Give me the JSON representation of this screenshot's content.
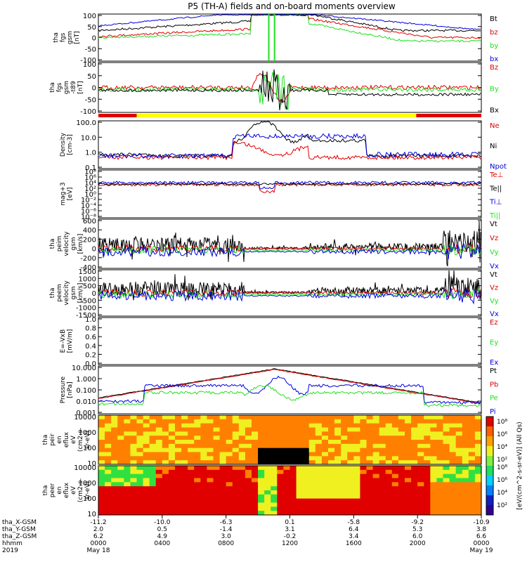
{
  "title": "P5 (TH-A) fields and on-board moments overview",
  "colors": {
    "black": "#000000",
    "red": "#e00000",
    "green": "#20e020",
    "blue": "#0000e0",
    "yellow": "#ffff00",
    "orange": "#ff9000"
  },
  "chart_data": [
    {
      "type": "line",
      "id": "fgs",
      "ylabel": [
        "tha",
        "fgs",
        "gsm",
        "[nT]"
      ],
      "ylim": [
        -100,
        100
      ],
      "yticks": [
        100,
        50,
        0,
        -50,
        -100
      ],
      "legend": [
        {
          "name": "Bt",
          "color": "black"
        },
        {
          "name": "bz",
          "color": "red"
        },
        {
          "name": "by",
          "color": "green"
        },
        {
          "name": "bx",
          "color": "blue"
        }
      ]
    },
    {
      "type": "line",
      "id": "fgs_dc",
      "ylabel": [
        "tha",
        "fgs",
        "gsm",
        "-t89",
        "[nT]"
      ],
      "ylim": [
        -120,
        120
      ],
      "yticks": [
        100,
        50,
        0,
        -50,
        -100
      ],
      "legend": [
        {
          "name": "Bz",
          "color": "red"
        },
        {
          "name": "By",
          "color": "green"
        },
        {
          "name": "Bx",
          "color": "black"
        }
      ]
    },
    {
      "type": "bar",
      "id": "mode_bar",
      "segments": [
        {
          "start": 0,
          "end": 0.1,
          "color": "red"
        },
        {
          "start": 0.1,
          "end": 0.83,
          "color": "yellow"
        },
        {
          "start": 0.83,
          "end": 1.0,
          "color": "red"
        }
      ]
    },
    {
      "type": "line",
      "id": "density",
      "scale": "log",
      "ylabel": [
        "Density",
        "[cm-3]"
      ],
      "ylim": [
        0.05,
        200
      ],
      "yticks": [
        "100.0",
        "10.0",
        "1.0",
        "0.1"
      ],
      "legend": [
        {
          "name": "Ne",
          "color": "red"
        },
        {
          "name": "Ni",
          "color": "black"
        },
        {
          "name": "Npot",
          "color": "blue"
        }
      ]
    },
    {
      "type": "line",
      "id": "temp",
      "scale": "log",
      "ylabel": [
        "mag+3",
        "[eV]"
      ],
      "yticks": [
        "10⁸",
        "10⁶",
        "10⁴",
        "10²",
        "10⁰",
        "10⁻²",
        "10⁻⁴",
        "10⁻⁶",
        "10⁻⁸"
      ],
      "legend": [
        {
          "name": "Te⊥",
          "color": "red"
        },
        {
          "name": "Te||",
          "color": "black"
        },
        {
          "name": "Ti⊥",
          "color": "blue"
        },
        {
          "name": "Ti||",
          "color": "green"
        }
      ]
    },
    {
      "type": "line",
      "id": "peim",
      "ylabel": [
        "tha",
        "peim",
        "velocity",
        "gsm",
        "[km/s]"
      ],
      "ylim": [
        -400,
        600
      ],
      "yticks": [
        600,
        400,
        200,
        0,
        -200,
        -400
      ],
      "legend": [
        {
          "name": "Vt",
          "color": "black"
        },
        {
          "name": "Vz",
          "color": "red"
        },
        {
          "name": "Vy",
          "color": "green"
        },
        {
          "name": "Vx",
          "color": "blue"
        }
      ]
    },
    {
      "type": "line",
      "id": "peem",
      "ylabel": [
        "tha",
        "peem",
        "velocity",
        "gsm",
        "[km/s]"
      ],
      "ylim": [
        -1500,
        1500
      ],
      "yticks": [
        1500,
        1000,
        500,
        0,
        -500,
        -1000,
        -1500
      ],
      "legend": [
        {
          "name": "Vt",
          "color": "black"
        },
        {
          "name": "Vz",
          "color": "red"
        },
        {
          "name": "Vy",
          "color": "green"
        },
        {
          "name": "Vx",
          "color": "blue"
        }
      ]
    },
    {
      "type": "line",
      "id": "efield",
      "ylabel": [
        "E=-VxB",
        "[mV/m]"
      ],
      "ylim": [
        0,
        1
      ],
      "yticks": [
        "1.0",
        "0.8",
        "0.6",
        "0.4",
        "0.2",
        "0.0"
      ],
      "legend": [
        {
          "name": "Ez",
          "color": "red"
        },
        {
          "name": "Ey",
          "color": "green"
        },
        {
          "name": "Ex",
          "color": "blue"
        }
      ]
    },
    {
      "type": "line",
      "id": "pressure",
      "scale": "log",
      "ylabel": [
        "Pressure",
        "[nPa]"
      ],
      "yticks": [
        "10.000",
        "1.000",
        "0.100",
        "0.010",
        "0.001"
      ],
      "legend": [
        {
          "name": "Pt",
          "color": "black"
        },
        {
          "name": "Pb",
          "color": "red"
        },
        {
          "name": "Pe",
          "color": "green"
        },
        {
          "name": "Pi",
          "color": "blue"
        }
      ]
    },
    {
      "type": "heatmap",
      "id": "peir",
      "ylabel": [
        "tha",
        "peir",
        "en",
        "eflux",
        "eV",
        "(cm2-s-",
        "sr-eV)"
      ],
      "yticks": [
        "10000",
        "1000",
        "100",
        "10"
      ]
    },
    {
      "type": "heatmap",
      "id": "peer",
      "ylabel": [
        "tha",
        "peer",
        "en",
        "eflux",
        "eV",
        "(cm2-s-",
        "sr-eV)"
      ],
      "yticks": [
        "10000",
        "1000",
        "100",
        "10"
      ]
    }
  ],
  "colorbar": {
    "label": "[eV/(cm^2-s-sr-eV)] (All Qs)",
    "top_ticks": [
      "10⁸",
      "10⁶",
      "10⁴",
      "10²"
    ],
    "bottom_ticks": [
      "10⁸",
      "10⁶",
      "10⁴",
      "10²"
    ]
  },
  "xaxis": {
    "row_labels": [
      "tha_X-GSM",
      "tha_Y-GSM",
      "tha_Z-GSM",
      "hhmm",
      "2019"
    ],
    "ticks": [
      {
        "x": "-11.2",
        "y": "2.0",
        "z": "6.2",
        "t": "0000",
        "d": "May 18"
      },
      {
        "x": "-10.0",
        "y": "0.5",
        "z": "4.9",
        "t": "0400",
        "d": ""
      },
      {
        "x": "-6.3",
        "y": "-1.4",
        "z": "3.0",
        "t": "0800",
        "d": ""
      },
      {
        "x": "0.1",
        "y": "3.1",
        "z": "-0.2",
        "t": "1200",
        "d": ""
      },
      {
        "x": "-5.8",
        "y": "6.4",
        "z": "3.4",
        "t": "1600",
        "d": ""
      },
      {
        "x": "-9.2",
        "y": "5.3",
        "z": "6.0",
        "t": "2000",
        "d": ""
      },
      {
        "x": "-10.9",
        "y": "3.8",
        "z": "6.6",
        "t": "0000",
        "d": "May 19"
      }
    ]
  }
}
